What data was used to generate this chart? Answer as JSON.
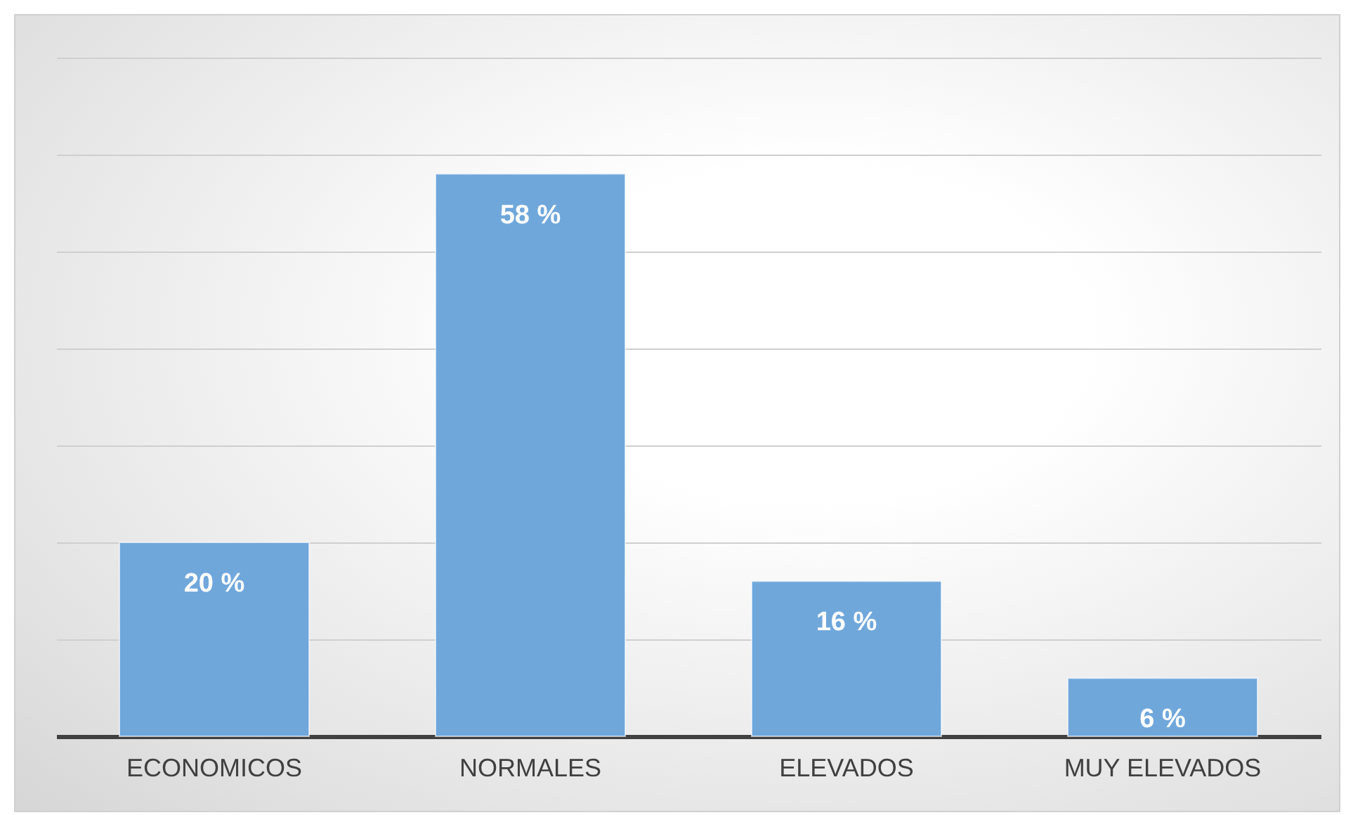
{
  "chart_data": {
    "type": "bar",
    "categories": [
      "ECONOMICOS",
      "NORMALES",
      "ELEVADOS",
      "MUY ELEVADOS"
    ],
    "values": [
      20,
      58,
      16,
      6
    ],
    "value_labels": [
      "20 %",
      "58 %",
      "16 %",
      "6 %"
    ],
    "color": "#70a7db",
    "ylim": [
      0,
      70
    ],
    "yticks": [
      0,
      10,
      20,
      30,
      40,
      50,
      60,
      70
    ],
    "grid": "y",
    "tick_labels": "x"
  }
}
